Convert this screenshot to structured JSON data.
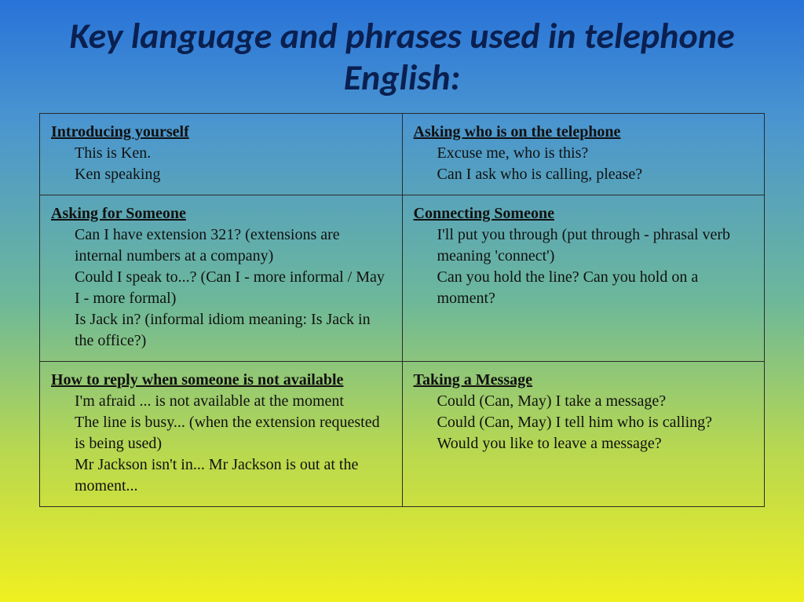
{
  "title": "Key language and phrases used in telephone English:",
  "colors": {
    "title_color": "#0a2050",
    "border_color": "#2a2a2a",
    "text_color": "#111111",
    "bg_gradient_top": "#2873d8",
    "bg_gradient_bottom": "#f0f020"
  },
  "typography": {
    "title_font": "Calibri",
    "title_fontsize": 46,
    "title_style": "italic bold",
    "body_font": "Times New Roman",
    "heading_fontsize": 20,
    "content_fontsize": 20
  },
  "grid": {
    "rows": 3,
    "cols": 2,
    "cells": [
      [
        {
          "heading": "Introducing yourself",
          "content": "This is Ken.\nKen speaking"
        },
        {
          "heading": "Asking who is on the telephone",
          "content": "Excuse me, who is this?\nCan I ask who is calling, please?"
        }
      ],
      [
        {
          "heading": "Asking for Someone",
          "content": "Can I have extension 321? (extensions are internal numbers at a company)\nCould I speak to...? (Can I - more informal / May I - more formal)\nIs Jack in? (informal idiom meaning: Is Jack in the office?)"
        },
        {
          "heading": "Connecting Someone",
          "content": "I'll put you through (put through - phrasal verb meaning 'connect')\nCan you hold the line? Can you hold on a moment?"
        }
      ],
      [
        {
          "heading": "How to reply when someone is not available",
          "content": "I'm afraid ... is not available at the moment\nThe line is busy... (when the extension requested is being used)\nMr Jackson isn't in... Mr Jackson is out at the moment..."
        },
        {
          "heading": "Taking a Message",
          "content": "Could (Can, May) I take a message?\nCould (Can, May) I tell him who is calling?\nWould you like to leave a message?"
        }
      ]
    ]
  }
}
